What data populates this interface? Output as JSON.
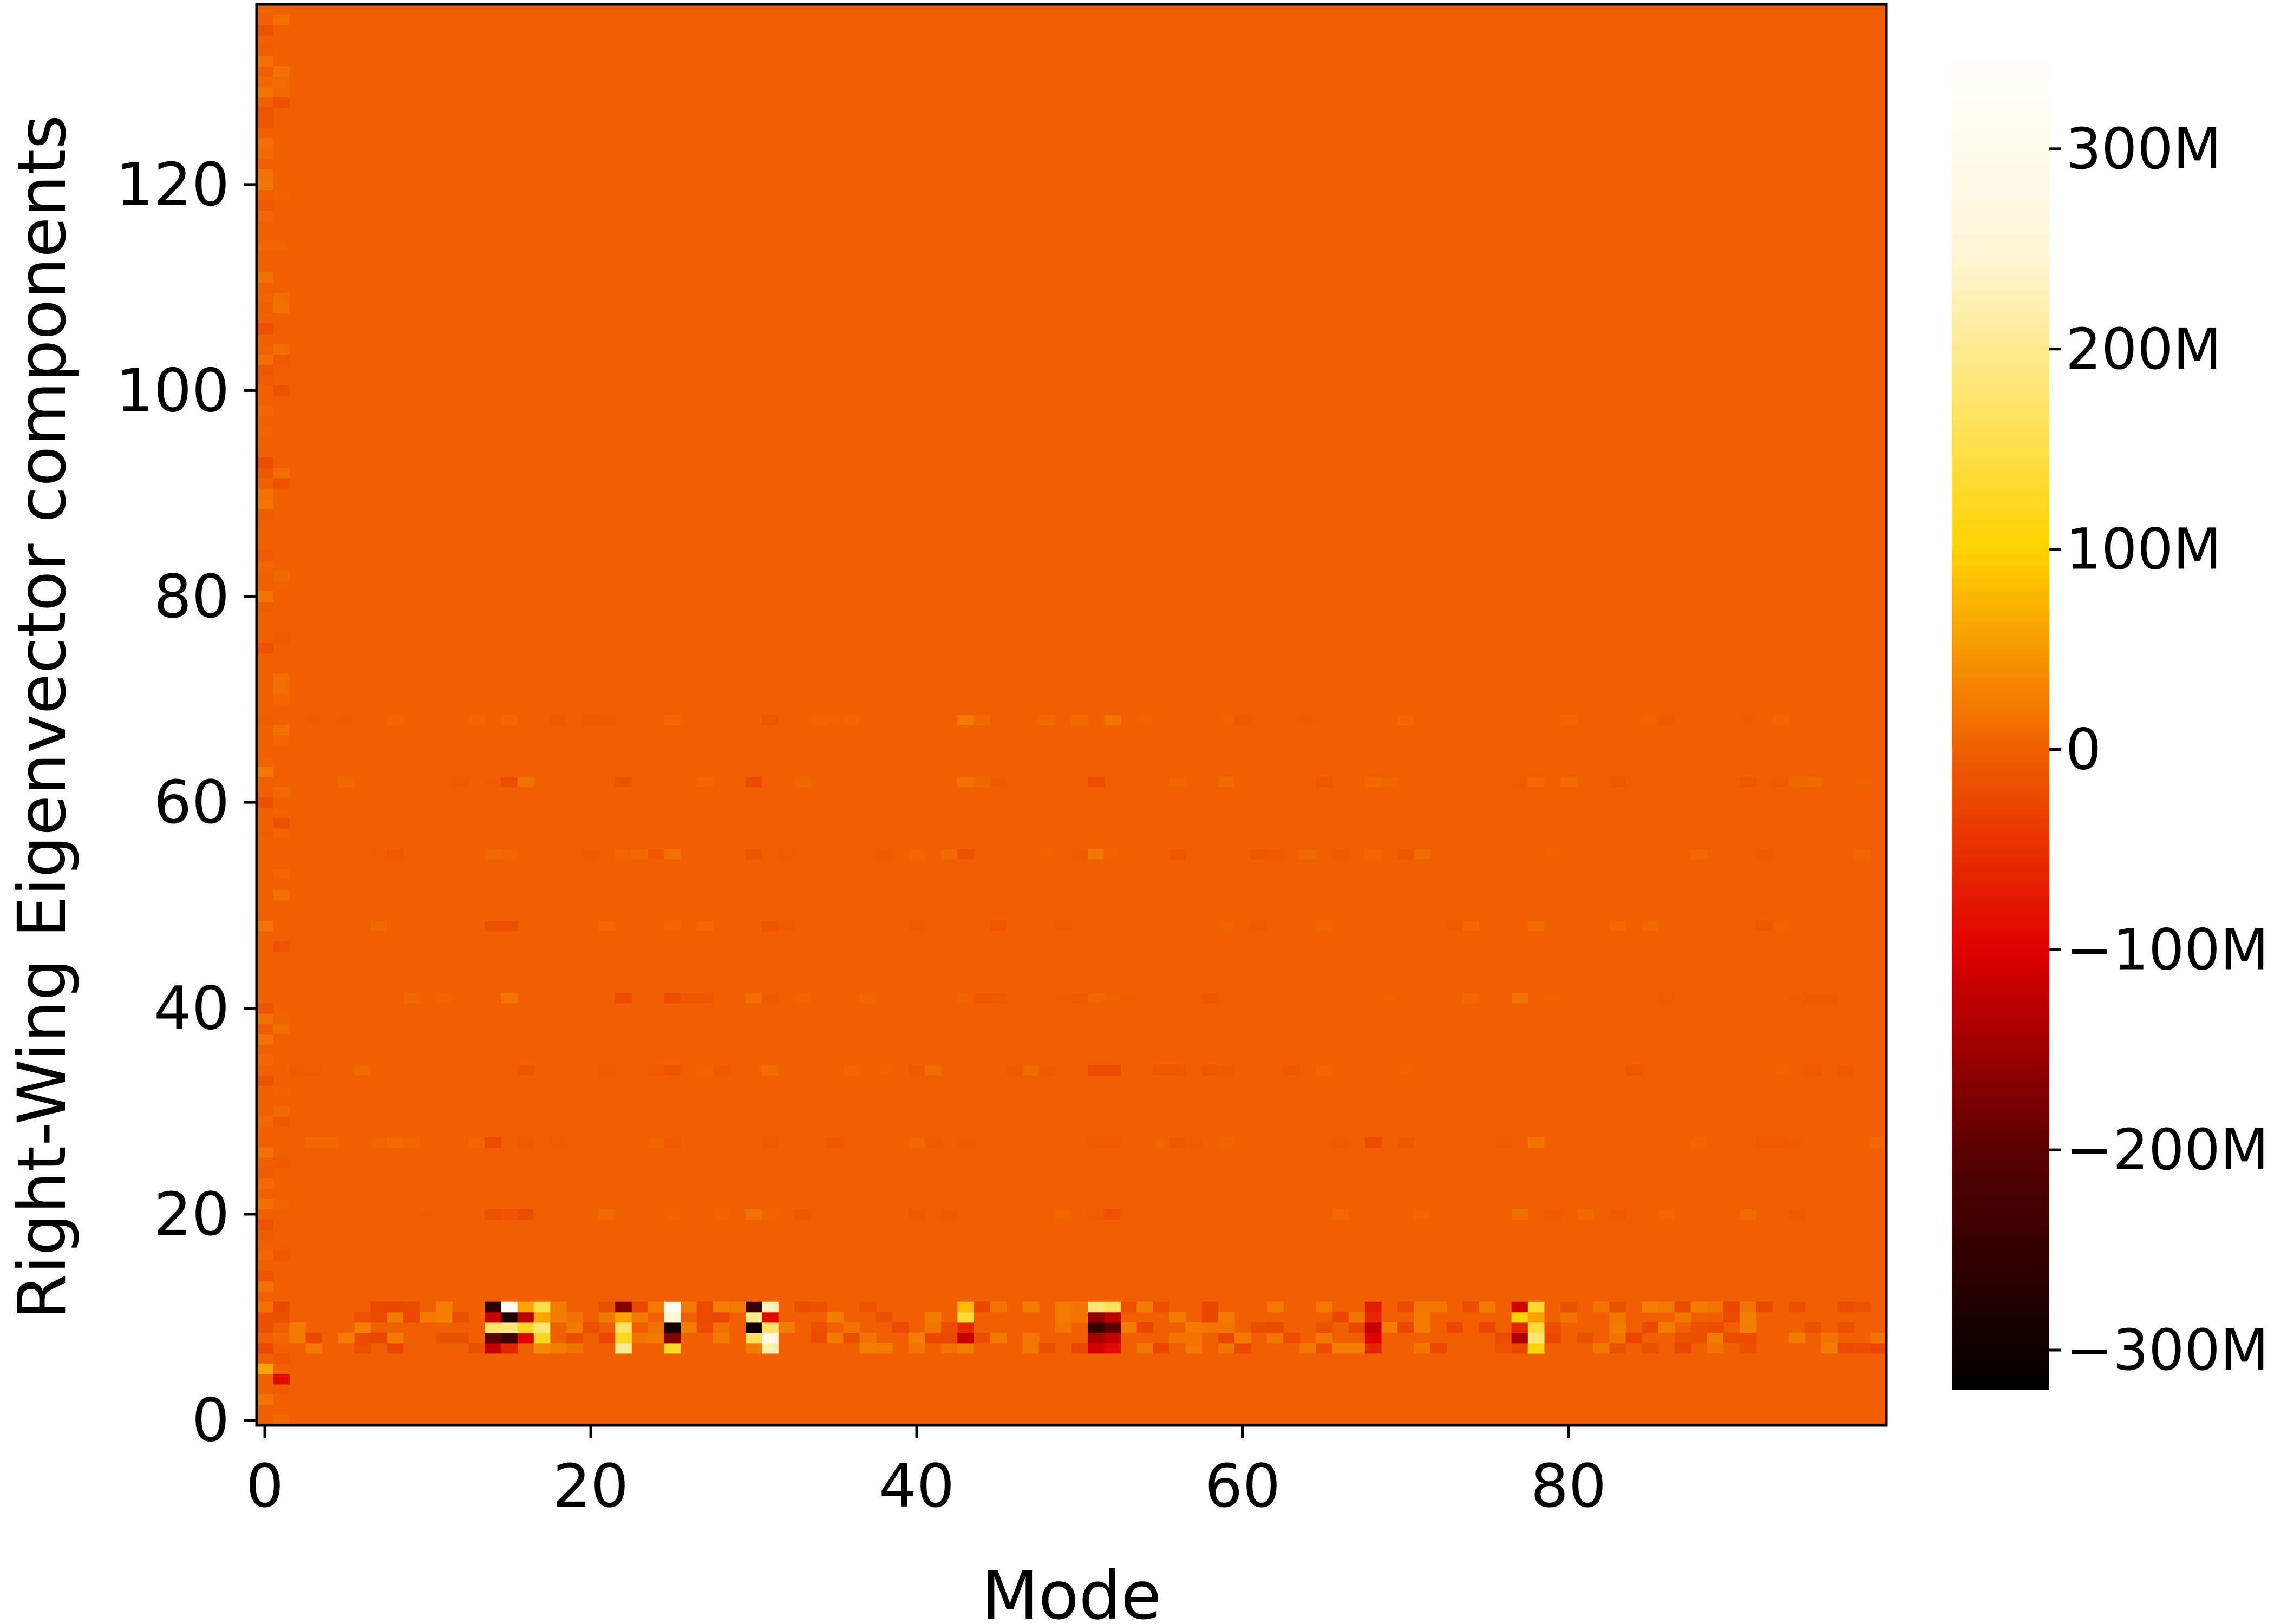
{
  "chart_data": {
    "type": "heatmap",
    "title": "",
    "xlabel": "Mode",
    "ylabel": "Right-Wing Eigenvector components",
    "x_range": [
      -0.5,
      99.5
    ],
    "y_range": [
      -0.5,
      137.5
    ],
    "n_modes": 100,
    "n_components": 138,
    "x_ticks": [
      0,
      20,
      40,
      60,
      80
    ],
    "x_tick_labels": [
      "0",
      "20",
      "40",
      "60",
      "80"
    ],
    "y_ticks": [
      0,
      20,
      40,
      60,
      80,
      100,
      120
    ],
    "y_tick_labels": [
      "0",
      "20",
      "40",
      "60",
      "80",
      "100",
      "120"
    ],
    "colormap": "hot",
    "vmin": -320000000,
    "vmax": 350000000,
    "colorbar": {
      "ticks": [
        -300000000,
        -200000000,
        -100000000,
        0,
        100000000,
        200000000,
        300000000
      ],
      "tick_labels": [
        "−300M",
        "−200M",
        "−100M",
        "0",
        "100M",
        "200M",
        "300M"
      ],
      "stops": [
        "#000000",
        "#5a0000",
        "#e00000",
        "#f06000",
        "#ffd200",
        "#fff6d8",
        "#ffffff"
      ]
    },
    "background_value": 0,
    "strong_columns": [
      {
        "mode": 14,
        "values": {
          "7": -120000000,
          "8": -200000000,
          "9": 170000000,
          "10": -120000000,
          "11": -260000000
        }
      },
      {
        "mode": 15,
        "values": {
          "7": -60000000,
          "8": -240000000,
          "9": 180000000,
          "10": -280000000,
          "11": 300000000
        }
      },
      {
        "mode": 16,
        "values": {
          "8": -100000000,
          "9": 120000000,
          "10": -130000000,
          "11": 60000000
        }
      },
      {
        "mode": 17,
        "values": {
          "8": 120000000,
          "9": 180000000,
          "10": 60000000,
          "11": 150000000
        }
      },
      {
        "mode": 22,
        "values": {
          "7": 200000000,
          "8": 120000000,
          "9": 170000000,
          "10": 60000000,
          "11": -170000000
        }
      },
      {
        "mode": 25,
        "values": {
          "7": 120000000,
          "8": -170000000,
          "9": -290000000,
          "10": 250000000,
          "11": 300000000
        }
      },
      {
        "mode": 30,
        "values": {
          "8": 160000000,
          "9": -300000000,
          "10": 200000000,
          "11": -250000000
        }
      },
      {
        "mode": 31,
        "values": {
          "7": 220000000,
          "8": 280000000,
          "9": 170000000,
          "10": -90000000,
          "11": 230000000
        }
      },
      {
        "mode": 43,
        "values": {
          "8": -120000000,
          "9": -60000000,
          "10": 140000000,
          "11": 80000000
        }
      },
      {
        "mode": 51,
        "values": {
          "7": -110000000,
          "8": -140000000,
          "9": -250000000,
          "10": -160000000,
          "11": 180000000
        }
      },
      {
        "mode": 52,
        "values": {
          "7": -90000000,
          "8": -120000000,
          "9": -200000000,
          "10": -130000000,
          "11": 160000000
        }
      },
      {
        "mode": 68,
        "values": {
          "8": -100000000,
          "9": -120000000,
          "10": -60000000,
          "11": -70000000
        }
      },
      {
        "mode": 77,
        "values": {
          "8": -140000000,
          "9": -60000000,
          "10": 100000000,
          "11": -110000000
        }
      },
      {
        "mode": 78,
        "values": {
          "7": 110000000,
          "8": 180000000,
          "9": 140000000,
          "10": 60000000,
          "11": 130000000
        }
      }
    ]
  }
}
